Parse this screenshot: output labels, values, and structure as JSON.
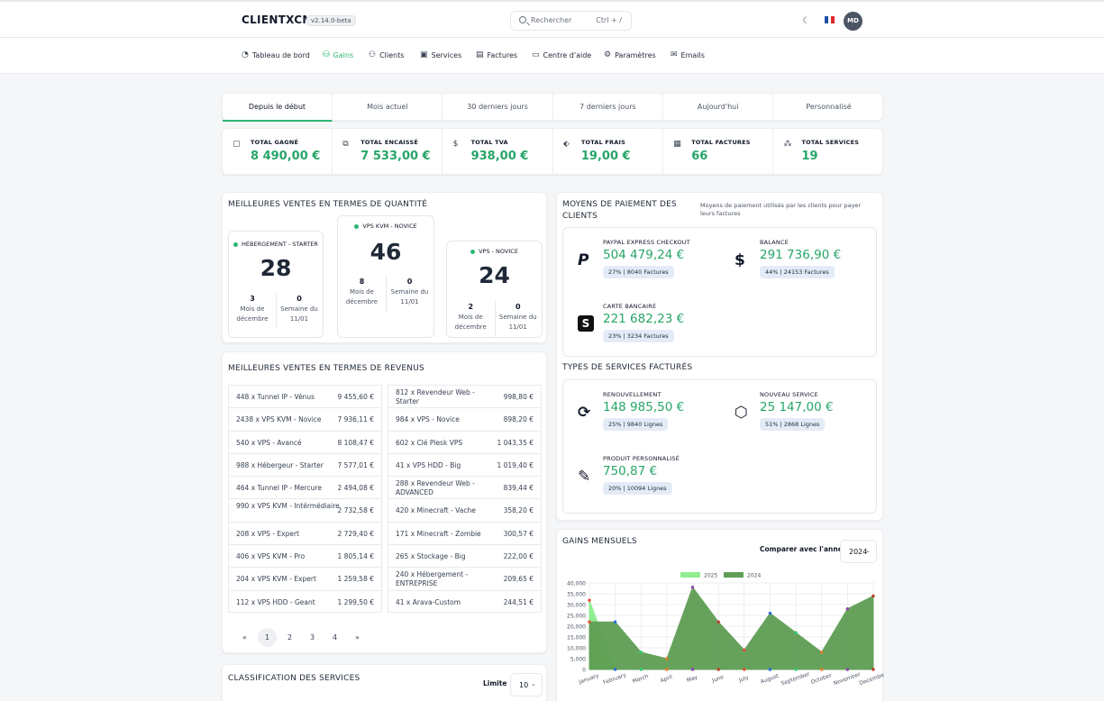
{
  "header": {
    "brand": "CLIENTXCMS",
    "version": "v2.14.0-beta",
    "search_placeholder": "Rechercher",
    "search_shortcut": "Ctrl + /",
    "avatar_initials": "MD"
  },
  "nav": [
    {
      "label": "Tableau de bord",
      "icon": "gauge-icon",
      "glyph": "◔",
      "active": false
    },
    {
      "label": "Gains",
      "icon": "coins-icon",
      "glyph": "⛁",
      "active": true
    },
    {
      "label": "Clients",
      "icon": "users-icon",
      "glyph": "⚇",
      "active": false
    },
    {
      "label": "Services",
      "icon": "box-icon",
      "glyph": "▣",
      "active": false
    },
    {
      "label": "Factures",
      "icon": "invoice-icon",
      "glyph": "▤",
      "active": false
    },
    {
      "label": "Centre d'aide",
      "icon": "help-icon",
      "glyph": "▭",
      "active": false
    },
    {
      "label": "Paramètres",
      "icon": "gear-icon",
      "glyph": "⚙",
      "active": false
    },
    {
      "label": "Emails",
      "icon": "mail-icon",
      "glyph": "✉",
      "active": false
    }
  ],
  "periods": [
    "Depuis le début",
    "Mois actuel",
    "30 derniers jours",
    "7 derniers jours",
    "Aujourd'hui",
    "Personnalisé"
  ],
  "stats": [
    {
      "label": "TOTAL GAGNÉ",
      "value": "8 490,00 €",
      "icon": "wallet-icon",
      "glyph": "▢"
    },
    {
      "label": "TOTAL ENCAISSÉ",
      "value": "7 533,00 €",
      "icon": "cash-icon",
      "glyph": "⧉"
    },
    {
      "label": "TOTAL TVA",
      "value": "938,00 €",
      "icon": "dollar-icon",
      "glyph": "$"
    },
    {
      "label": "TOTAL FRAIS",
      "value": "19,00 €",
      "icon": "tag-icon",
      "glyph": "⬖"
    },
    {
      "label": "TOTAL FACTURES",
      "value": "66",
      "icon": "receipt-icon",
      "glyph": "▦"
    },
    {
      "label": "TOTAL SERVICES",
      "value": "19",
      "icon": "boxes-icon",
      "glyph": "⁂"
    }
  ],
  "quantity": {
    "title": "MEILLEURES VENTES EN TERMES DE QUANTITÉ",
    "items": [
      {
        "name": "HÉBERGEMENT - STARTER",
        "total": "28",
        "month": "3",
        "week": "0"
      },
      {
        "name": "VPS KVM - NOVICE",
        "total": "46",
        "month": "8",
        "week": "0"
      },
      {
        "name": "VPS - NOVICE",
        "total": "24",
        "month": "2",
        "week": "0"
      }
    ],
    "month_label": "Mois de décembre",
    "week_label": "Semaine du 11/01"
  },
  "revenue": {
    "title": "MEILLEURES VENTES EN TERMES DE REVENUS",
    "left": [
      {
        "name": "448 x Tunnel IP - Vénus",
        "value": "9 455,60 €"
      },
      {
        "name": "2438 x VPS KVM - Novice",
        "value": "7 936,11 €"
      },
      {
        "name": "540 x VPS - Avancé",
        "value": "8 108,47 €"
      },
      {
        "name": "988 x Hébergeur - Starter",
        "value": "7 577,01 €"
      },
      {
        "name": "464 x Tunnel IP - Mercure",
        "value": "2 494,08 €"
      },
      {
        "name": "990 x VPS KVM - Intérmédiaire",
        "value": "2 732,58 €"
      },
      {
        "name": "208 x VPS - Expert",
        "value": "2 729,40 €"
      },
      {
        "name": "406 x VPS KVM - Pro",
        "value": "1 805,14 €"
      },
      {
        "name": "204 x VPS KVM - Expert",
        "value": "1 259,58 €"
      },
      {
        "name": "112 x VPS HDD - Geant",
        "value": "1 299,50 €"
      }
    ],
    "right": [
      {
        "name": "812 x Revendeur Web - Starter",
        "value": "998,80 €"
      },
      {
        "name": "984 x VPS - Novice",
        "value": "898,20 €"
      },
      {
        "name": "602 x Clé Plesk VPS",
        "value": "1 043,35 €"
      },
      {
        "name": "41 x VPS HDD - Big",
        "value": "1 019,40 €"
      },
      {
        "name": "288 x Revendeur Web - ADVANCED",
        "value": "839,44 €"
      },
      {
        "name": "420 x Minecraft - Vache",
        "value": "358,20 €"
      },
      {
        "name": "171 x Minecraft - Zombie",
        "value": "300,57 €"
      },
      {
        "name": "265 x Stockage - Big",
        "value": "222,00 €"
      },
      {
        "name": "240 x Hébergement - ENTREPRISE",
        "value": "209,65 €"
      },
      {
        "name": "41 x Arava-Custom",
        "value": "244,51 €"
      }
    ],
    "pages": [
      "«",
      "1",
      "2",
      "3",
      "4",
      "»"
    ]
  },
  "classification": {
    "title": "CLASSIFICATION DES SERVICES",
    "limit_label": "Limite",
    "limit_value": "10"
  },
  "payments": {
    "title": "MOYENS DE PAIEMENT DES CLIENTS",
    "subtitle": "Moyens de paiement utilisés par les clients pour payer leurs factures",
    "items": [
      {
        "label": "PAYPAL EXPRESS CHECKOUT",
        "value": "504 479,24 €",
        "badge": "27% | 8040 Factures",
        "icon": "paypal-icon",
        "glyph": "P"
      },
      {
        "label": "BALANCE",
        "value": "291 736,90 €",
        "badge": "44% | 24153 Factures",
        "icon": "dollar-icon",
        "glyph": "$"
      },
      {
        "label": "CARTE BANCAIRE",
        "value": "221 682,23 €",
        "badge": "23% | 3234 Factures",
        "icon": "stripe-icon",
        "glyph": "S"
      }
    ]
  },
  "service_types": {
    "title": "TYPES DE SERVICES FACTURÉS",
    "items": [
      {
        "label": "RENOUVELLEMENT",
        "value": "148 985,50 €",
        "badge": "25% | 9840 Lignes",
        "icon": "refresh-icon",
        "glyph": "⟳"
      },
      {
        "label": "NOUVEAU SERVICE",
        "value": "25 147,00 €",
        "badge": "51% | 2868 Lignes",
        "icon": "cube-icon",
        "glyph": "⬡"
      },
      {
        "label": "PRODUIT PERSONNALISÉ",
        "value": "750,87 €",
        "badge": "20% | 10094 Lignes",
        "icon": "pencil-icon",
        "glyph": "✎"
      }
    ]
  },
  "gains": {
    "title": "GAINS MENSUELS",
    "compare_label": "Comparer avec l'année",
    "year": "2024"
  },
  "chart_data": {
    "type": "area",
    "categories": [
      "January",
      "February",
      "March",
      "April",
      "May",
      "June",
      "July",
      "August",
      "September",
      "October",
      "November",
      "December"
    ],
    "series": [
      {
        "name": "2025",
        "values": [
          32000,
          0,
          0,
          0,
          0,
          0,
          0,
          0,
          0,
          0,
          0,
          0
        ],
        "color": "#90ee90"
      },
      {
        "name": "2024",
        "values": [
          22000,
          22000,
          8000,
          5000,
          38000,
          22000,
          9000,
          26000,
          17000,
          8000,
          28000,
          34000
        ],
        "color": "#5f9e55"
      }
    ],
    "yticks": [
      "40,000",
      "35,000",
      "30,000",
      "25,000",
      "20,000",
      "15,000",
      "10,000",
      "5,000",
      "0"
    ],
    "ylim": [
      0,
      40000
    ],
    "grid": true,
    "legend": "top"
  }
}
